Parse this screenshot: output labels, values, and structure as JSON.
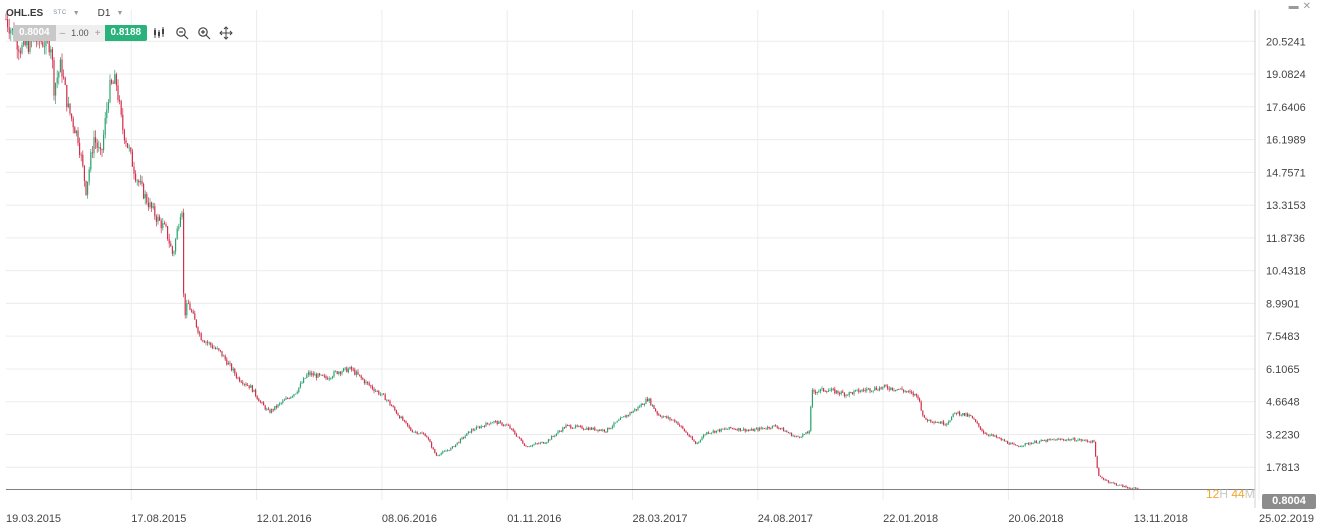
{
  "header": {
    "symbol": "OHL.ES",
    "sub_tag": "STC",
    "timeframe": "D1",
    "window_buttons": [
      "▬",
      "✕"
    ]
  },
  "trade_bar": {
    "bid": "0.8004",
    "lot_minus": "–",
    "lot": "1.00",
    "lot_plus": "+",
    "ask": "0.8188"
  },
  "tools": [
    "candles-icon",
    "zoom-out-icon",
    "zoom-in-icon",
    "crosshair-icon"
  ],
  "timer": {
    "h_value": "12",
    "h_unit": "H",
    "m_value": "44",
    "m_unit": "M"
  },
  "current_price": "0.8004",
  "colors": {
    "up": "#29a36e",
    "down": "#d0304a",
    "grid": "#ececec",
    "price_line": "#7f7f7f",
    "ask_bg": "#29b27c"
  },
  "chart_data": {
    "type": "candlestick",
    "title": "",
    "y_axis_labels": [
      "20.5241",
      "19.0824",
      "17.6406",
      "16.1989",
      "14.7571",
      "13.3153",
      "11.8736",
      "10.4318",
      "8.9901",
      "7.5483",
      "6.1065",
      "4.6648",
      "3.2230",
      "1.7813"
    ],
    "x_axis_labels": [
      "19.03.2015",
      "17.08.2015",
      "12.01.2016",
      "08.06.2016",
      "01.11.2016",
      "28.03.2017",
      "24.08.2017",
      "22.01.2018",
      "20.06.2018",
      "13.11.2018",
      "25.02.2019"
    ],
    "ylim": [
      0.34,
      21.9
    ],
    "grid": true,
    "current_price": 0.8004,
    "close_path": [
      [
        0,
        21.5
      ],
      [
        15,
        20.2
      ],
      [
        30,
        20.6
      ],
      [
        45,
        20.4
      ],
      [
        48,
        18.5
      ],
      [
        55,
        19.5
      ],
      [
        62,
        17.6
      ],
      [
        72,
        16.3
      ],
      [
        80,
        14.0
      ],
      [
        88,
        16.3
      ],
      [
        95,
        15.4
      ],
      [
        103,
        18.4
      ],
      [
        110,
        18.8
      ],
      [
        116,
        16.8
      ],
      [
        120,
        16.2
      ],
      [
        130,
        14.6
      ],
      [
        140,
        13.6
      ],
      [
        150,
        12.8
      ],
      [
        160,
        12.2
      ],
      [
        167,
        11.1
      ],
      [
        175,
        13.2
      ],
      [
        176,
        13.2
      ],
      [
        178,
        8.4
      ],
      [
        182,
        9.0
      ],
      [
        195,
        7.5
      ],
      [
        215,
        6.8
      ],
      [
        232,
        5.7
      ],
      [
        245,
        5.3
      ],
      [
        255,
        4.6
      ],
      [
        263,
        4.2
      ],
      [
        275,
        4.6
      ],
      [
        290,
        5.1
      ],
      [
        302,
        5.9
      ],
      [
        320,
        5.7
      ],
      [
        332,
        6.0
      ],
      [
        345,
        6.1
      ],
      [
        360,
        5.5
      ],
      [
        380,
        4.8
      ],
      [
        392,
        4.1
      ],
      [
        405,
        3.4
      ],
      [
        420,
        3.2
      ],
      [
        430,
        2.3
      ],
      [
        445,
        2.6
      ],
      [
        465,
        3.4
      ],
      [
        487,
        3.8
      ],
      [
        502,
        3.6
      ],
      [
        520,
        2.7
      ],
      [
        540,
        2.9
      ],
      [
        560,
        3.6
      ],
      [
        580,
        3.5
      ],
      [
        600,
        3.4
      ],
      [
        615,
        3.9
      ],
      [
        632,
        4.4
      ],
      [
        642,
        4.8
      ],
      [
        652,
        4.1
      ],
      [
        670,
        3.8
      ],
      [
        690,
        2.8
      ],
      [
        700,
        3.3
      ],
      [
        725,
        3.5
      ],
      [
        745,
        3.4
      ],
      [
        770,
        3.6
      ],
      [
        790,
        3.1
      ],
      [
        803,
        3.3
      ],
      [
        806,
        5.1
      ],
      [
        820,
        5.2
      ],
      [
        840,
        5.0
      ],
      [
        860,
        5.2
      ],
      [
        880,
        5.3
      ],
      [
        895,
        5.2
      ],
      [
        912,
        4.9
      ],
      [
        918,
        3.9
      ],
      [
        940,
        3.7
      ],
      [
        950,
        4.2
      ],
      [
        965,
        4.0
      ],
      [
        978,
        3.3
      ],
      [
        990,
        3.1
      ],
      [
        1010,
        2.7
      ],
      [
        1030,
        2.9
      ],
      [
        1050,
        3.0
      ],
      [
        1070,
        3.0
      ],
      [
        1088,
        2.9
      ],
      [
        1092,
        1.4
      ],
      [
        1105,
        1.1
      ],
      [
        1120,
        0.9
      ],
      [
        1133,
        0.8
      ]
    ]
  }
}
